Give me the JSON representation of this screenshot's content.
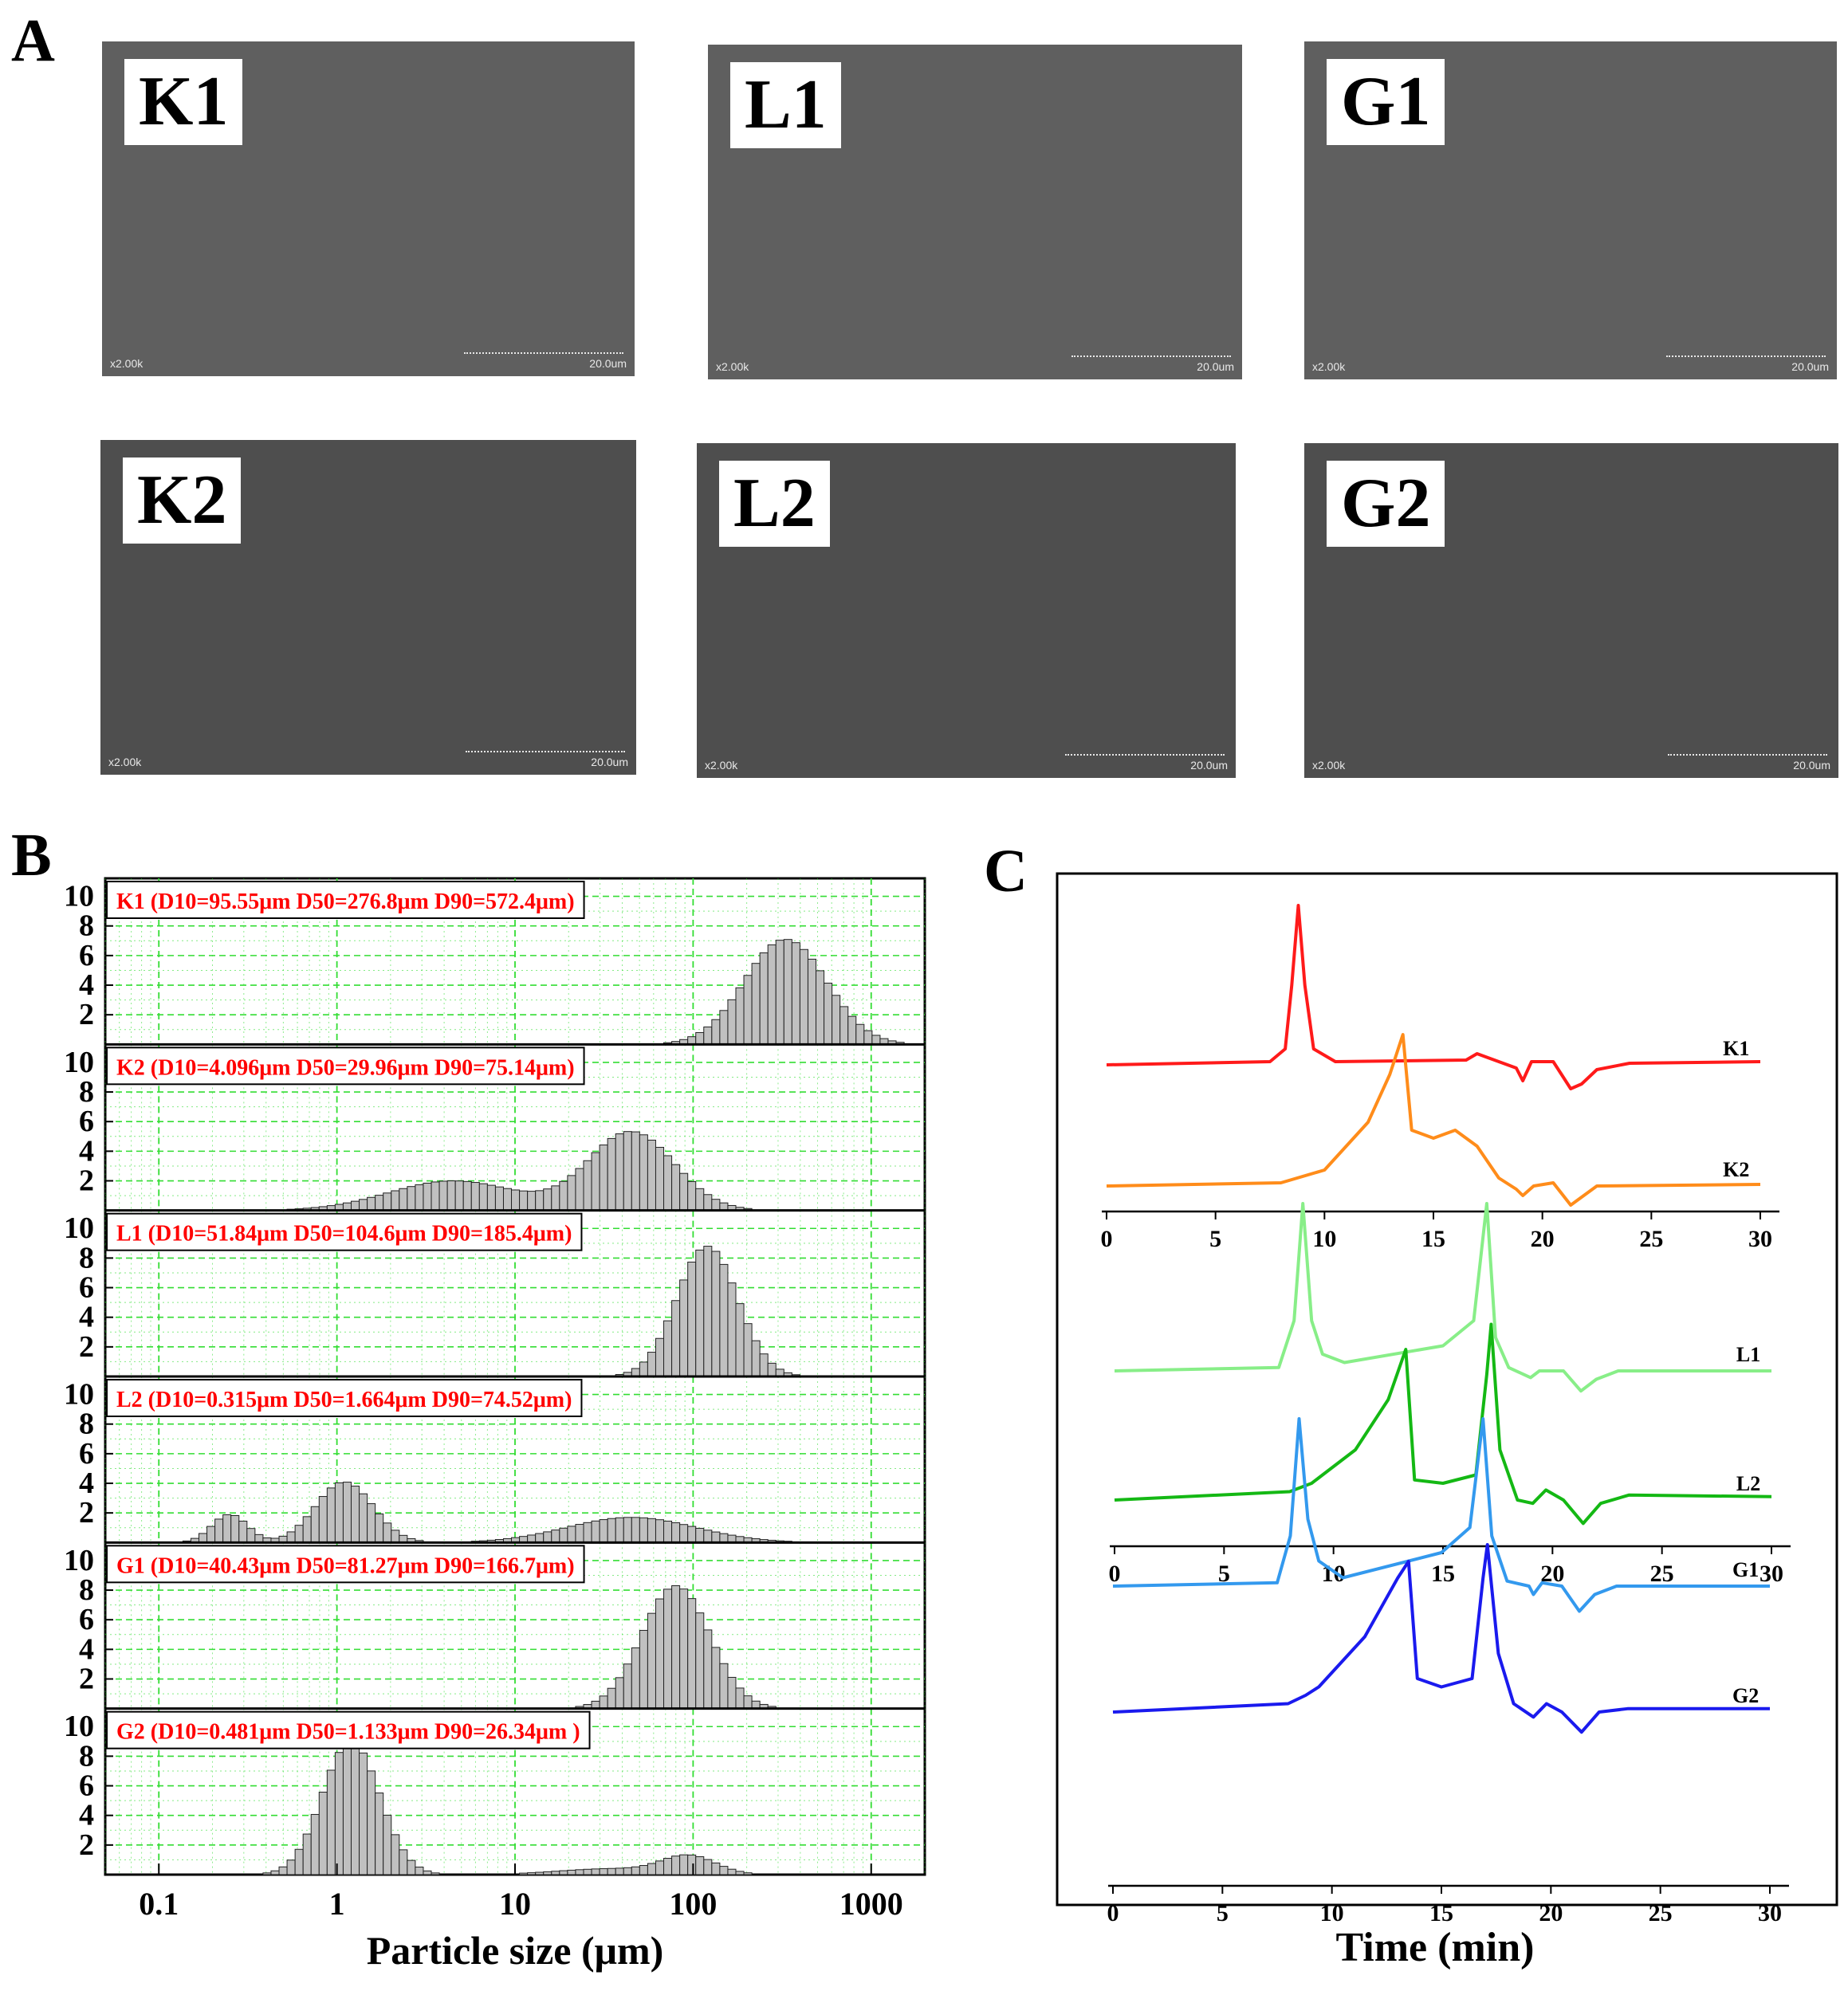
{
  "panel_letters": {
    "a": "A",
    "b": "B",
    "c": "C"
  },
  "sem_panels": [
    {
      "label": "K1",
      "magnification": "x2.00k",
      "scale_bar": "20.0um"
    },
    {
      "label": "L1",
      "magnification": "x2.00k",
      "scale_bar": "20.0um"
    },
    {
      "label": "G1",
      "magnification": "x2.00k",
      "scale_bar": "20.0um"
    },
    {
      "label": "K2",
      "magnification": "x2.00k",
      "scale_bar": "20.0um"
    },
    {
      "label": "L2",
      "magnification": "x2.00k",
      "scale_bar": "20.0um"
    },
    {
      "label": "G2",
      "magnification": "x2.00k",
      "scale_bar": "20.0um"
    }
  ],
  "chart_data": [
    {
      "type": "bar",
      "panel": "B",
      "xlabel": "Particle size (μm)",
      "x_scale": "log",
      "xlim": [
        0.05,
        2000
      ],
      "x_ticks": [
        "0.1",
        "1",
        "10",
        "100",
        "1000"
      ],
      "y_ticks": [
        "2",
        "4",
        "6",
        "8",
        "10"
      ],
      "ylim": [
        0,
        11
      ],
      "grid": true,
      "bar_color": "#c0c0c0",
      "grid_color": "#33dd33",
      "annotation_color": "#ff0000",
      "series": [
        {
          "name": "K1",
          "annotation": "K1 (D10=95.55μm  D50=276.8μm  D90=572.4μm)",
          "peaks": [
            {
              "center": 330,
              "amp": 7.1,
              "sigma": 0.23
            }
          ]
        },
        {
          "name": "K2",
          "annotation": "K2 (D10=4.096μm  D50=29.96μm  D90=75.14μm)",
          "peaks": [
            {
              "center": 45,
              "amp": 5.3,
              "sigma": 0.24
            },
            {
              "center": 4.5,
              "amp": 2.0,
              "sigma": 0.36
            }
          ]
        },
        {
          "name": "L1",
          "annotation": "L1 (D10=51.84μm  D50=104.6μm  D90=185.4μm)",
          "peaks": [
            {
              "center": 120,
              "amp": 8.8,
              "sigma": 0.17
            }
          ]
        },
        {
          "name": "L2",
          "annotation": "L2 (D10=0.315μm  D50=1.664μm  D90=74.52μm)",
          "peaks": [
            {
              "center": 1.1,
              "amp": 4.1,
              "sigma": 0.16
            },
            {
              "center": 0.25,
              "amp": 1.9,
              "sigma": 0.1
            },
            {
              "center": 45,
              "amp": 1.7,
              "sigma": 0.36
            }
          ]
        },
        {
          "name": "G1",
          "annotation": "G1 (D10=40.43μm  D50=81.27μm  D90=166.7μm)",
          "peaks": [
            {
              "center": 80,
              "amp": 8.3,
              "sigma": 0.19
            }
          ]
        },
        {
          "name": "G2",
          "annotation": "G2 (D10=0.481μm  D50=1.133μm  D90=26.34μm )",
          "peaks": [
            {
              "center": 1.2,
              "amp": 9.0,
              "sigma": 0.16
            },
            {
              "center": 95,
              "amp": 1.2,
              "sigma": 0.15
            },
            {
              "center": 35,
              "amp": 0.4,
              "sigma": 0.3
            }
          ]
        }
      ]
    },
    {
      "type": "line",
      "panel": "C",
      "xlabel": "Time (min)",
      "x_ticks": [
        "0",
        "5",
        "10",
        "15",
        "20",
        "25",
        "30"
      ],
      "xlim": [
        0,
        30
      ],
      "groups": [
        {
          "series": [
            {
              "name": "K1",
              "color": "#ff1a1a",
              "points": [
                [
                  0,
                  0
                ],
                [
                  7.5,
                  0.02
                ],
                [
                  8.2,
                  0.1
                ],
                [
                  8.5,
                  0.5
                ],
                [
                  8.8,
                  1.0
                ],
                [
                  9.1,
                  0.5
                ],
                [
                  9.5,
                  0.1
                ],
                [
                  10.5,
                  0.02
                ],
                [
                  16.5,
                  0.03
                ],
                [
                  17,
                  0.07
                ],
                [
                  18,
                  0.02
                ],
                [
                  18.8,
                  -0.02
                ],
                [
                  19.1,
                  -0.1
                ],
                [
                  19.5,
                  0.02
                ],
                [
                  20.5,
                  0.02
                ],
                [
                  21.3,
                  -0.15
                ],
                [
                  21.8,
                  -0.12
                ],
                [
                  22.5,
                  -0.03
                ],
                [
                  24,
                  0.01
                ],
                [
                  30,
                  0.02
                ]
              ]
            },
            {
              "name": "K2",
              "color": "#ff8c1a",
              "points": [
                [
                  0,
                  0
                ],
                [
                  8,
                  0.02
                ],
                [
                  10,
                  0.1
                ],
                [
                  12,
                  0.4
                ],
                [
                  13,
                  0.7
                ],
                [
                  13.6,
                  0.95
                ],
                [
                  14,
                  0.35
                ],
                [
                  15,
                  0.3
                ],
                [
                  16,
                  0.35
                ],
                [
                  17,
                  0.25
                ],
                [
                  18,
                  0.05
                ],
                [
                  18.8,
                  -0.02
                ],
                [
                  19.1,
                  -0.06
                ],
                [
                  19.6,
                  0.0
                ],
                [
                  20.5,
                  0.02
                ],
                [
                  21.3,
                  -0.12
                ],
                [
                  21.7,
                  -0.08
                ],
                [
                  22.5,
                  0.0
                ],
                [
                  30,
                  0.01
                ]
              ]
            }
          ]
        },
        {
          "series": [
            {
              "name": "L1",
              "color": "#88ee88",
              "points": [
                [
                  0,
                  0
                ],
                [
                  7.5,
                  0.02
                ],
                [
                  8.2,
                  0.3
                ],
                [
                  8.6,
                  1.0
                ],
                [
                  9,
                  0.3
                ],
                [
                  9.5,
                  0.1
                ],
                [
                  10.5,
                  0.05
                ],
                [
                  15,
                  0.15
                ],
                [
                  16.4,
                  0.3
                ],
                [
                  17,
                  1.0
                ],
                [
                  17.4,
                  0.2
                ],
                [
                  18,
                  0.02
                ],
                [
                  19,
                  -0.04
                ],
                [
                  19.4,
                  0.0
                ],
                [
                  20.5,
                  0.0
                ],
                [
                  21.3,
                  -0.12
                ],
                [
                  22,
                  -0.05
                ],
                [
                  23,
                  0.0
                ],
                [
                  30,
                  0.0
                ]
              ]
            },
            {
              "name": "L2",
              "color": "#14b814",
              "points": [
                [
                  0,
                  0
                ],
                [
                  8,
                  0.05
                ],
                [
                  9,
                  0.1
                ],
                [
                  9.5,
                  0.15
                ],
                [
                  11,
                  0.3
                ],
                [
                  12.5,
                  0.6
                ],
                [
                  13.3,
                  0.9
                ],
                [
                  13.7,
                  0.12
                ],
                [
                  15,
                  0.1
                ],
                [
                  16.5,
                  0.15
                ],
                [
                  17,
                  0.75
                ],
                [
                  17.2,
                  1.05
                ],
                [
                  17.6,
                  0.3
                ],
                [
                  18.4,
                  0.0
                ],
                [
                  19.1,
                  -0.02
                ],
                [
                  19.7,
                  0.06
                ],
                [
                  20.5,
                  0.0
                ],
                [
                  21.4,
                  -0.14
                ],
                [
                  22.2,
                  -0.02
                ],
                [
                  23.5,
                  0.03
                ],
                [
                  30,
                  0.02
                ]
              ]
            }
          ]
        },
        {
          "series": [
            {
              "name": "G1",
              "color": "#3399ee",
              "points": [
                [
                  0,
                  0
                ],
                [
                  7.5,
                  0.02
                ],
                [
                  8.1,
                  0.3
                ],
                [
                  8.5,
                  1.0
                ],
                [
                  8.9,
                  0.4
                ],
                [
                  9.4,
                  0.15
                ],
                [
                  10.5,
                  0.05
                ],
                [
                  15,
                  0.2
                ],
                [
                  16.3,
                  0.35
                ],
                [
                  16.9,
                  1.0
                ],
                [
                  17.3,
                  0.3
                ],
                [
                  18,
                  0.03
                ],
                [
                  19,
                  0.0
                ],
                [
                  19.2,
                  -0.05
                ],
                [
                  19.6,
                  0.02
                ],
                [
                  20.5,
                  0.0
                ],
                [
                  21.3,
                  -0.15
                ],
                [
                  22,
                  -0.05
                ],
                [
                  23,
                  0.0
                ],
                [
                  30,
                  0.0
                ]
              ]
            },
            {
              "name": "G2",
              "color": "#1a1aee",
              "points": [
                [
                  0,
                  0
                ],
                [
                  8,
                  0.05
                ],
                [
                  8.8,
                  0.1
                ],
                [
                  9.4,
                  0.15
                ],
                [
                  11.5,
                  0.45
                ],
                [
                  13,
                  0.8
                ],
                [
                  13.5,
                  0.9
                ],
                [
                  13.9,
                  0.2
                ],
                [
                  15,
                  0.15
                ],
                [
                  16.4,
                  0.2
                ],
                [
                  16.9,
                  0.8
                ],
                [
                  17.1,
                  1.0
                ],
                [
                  17.6,
                  0.35
                ],
                [
                  18.3,
                  0.05
                ],
                [
                  19.2,
                  -0.03
                ],
                [
                  19.8,
                  0.05
                ],
                [
                  20.5,
                  0.0
                ],
                [
                  21.4,
                  -0.12
                ],
                [
                  22.2,
                  0.0
                ],
                [
                  23.5,
                  0.02
                ],
                [
                  30,
                  0.02
                ]
              ]
            }
          ]
        }
      ]
    }
  ]
}
